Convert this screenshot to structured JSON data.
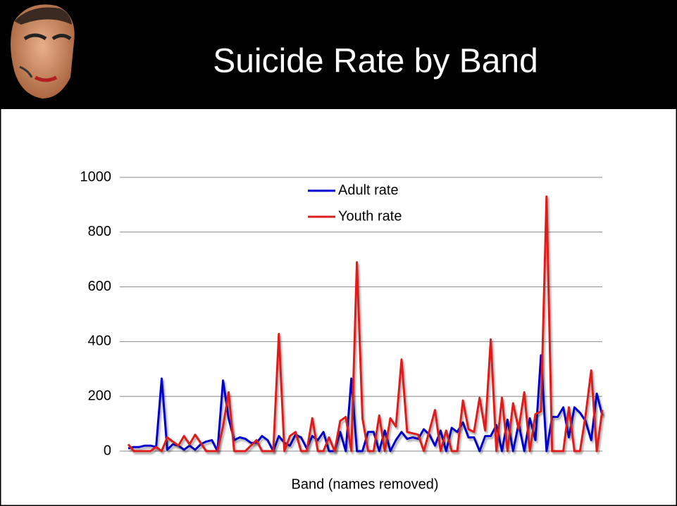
{
  "chart_data": {
    "type": "line",
    "title": "Suicide Rate by Band",
    "x_label": "Band (names removed)",
    "categories": [
      null,
      null,
      null,
      null,
      null,
      null,
      null,
      null,
      null,
      null,
      null,
      null,
      null,
      null,
      null,
      null,
      null,
      null,
      null,
      null,
      null,
      null,
      null,
      null,
      null,
      null,
      null,
      null,
      null,
      null,
      null,
      null,
      null,
      null,
      null,
      null,
      null,
      null,
      null,
      null,
      null,
      null,
      null,
      null,
      null,
      null,
      null,
      null,
      null,
      null,
      null,
      null,
      null,
      null,
      null,
      null,
      null,
      null,
      null,
      null,
      null,
      null,
      null,
      null,
      null,
      null,
      null,
      null,
      null,
      null,
      null,
      null,
      null,
      null,
      null,
      null,
      null,
      null,
      null,
      null,
      null,
      null,
      null,
      null,
      null,
      null
    ],
    "series": [
      {
        "name": "Adult rate",
        "color": "#0000cc",
        "values": [
          10,
          15,
          15,
          20,
          20,
          15,
          265,
          5,
          25,
          20,
          5,
          20,
          5,
          25,
          35,
          40,
          0,
          258,
          120,
          40,
          50,
          45,
          30,
          30,
          55,
          40,
          0,
          55,
          30,
          20,
          60,
          50,
          10,
          55,
          40,
          70,
          0,
          0,
          70,
          0,
          265,
          0,
          0,
          70,
          70,
          0,
          75,
          0,
          40,
          70,
          45,
          50,
          45,
          80,
          60,
          20,
          75,
          0,
          85,
          70,
          105,
          50,
          50,
          0,
          55,
          55,
          95,
          0,
          115,
          0,
          100,
          0,
          120,
          40,
          350,
          0,
          125,
          125,
          160,
          50,
          160,
          140,
          110,
          40,
          210,
          130
        ]
      },
      {
        "name": "Youth rate",
        "color": "#dd1c1c",
        "values": [
          25,
          0,
          0,
          0,
          0,
          15,
          0,
          50,
          35,
          20,
          55,
          25,
          60,
          30,
          0,
          0,
          0,
          90,
          215,
          0,
          0,
          0,
          20,
          40,
          0,
          0,
          0,
          428,
          0,
          55,
          70,
          0,
          0,
          120,
          0,
          0,
          50,
          0,
          110,
          125,
          0,
          690,
          120,
          0,
          0,
          130,
          0,
          120,
          90,
          335,
          70,
          65,
          60,
          0,
          75,
          150,
          0,
          75,
          0,
          0,
          185,
          80,
          70,
          195,
          75,
          408,
          0,
          195,
          0,
          175,
          80,
          215,
          0,
          135,
          145,
          930,
          0,
          0,
          0,
          160,
          0,
          0,
          130,
          295,
          0,
          150
        ]
      }
    ],
    "ylim": [
      0,
      1000
    ],
    "yticks": [
      0,
      200,
      400,
      600,
      800,
      1000
    ],
    "grid": true,
    "legend": "top"
  }
}
